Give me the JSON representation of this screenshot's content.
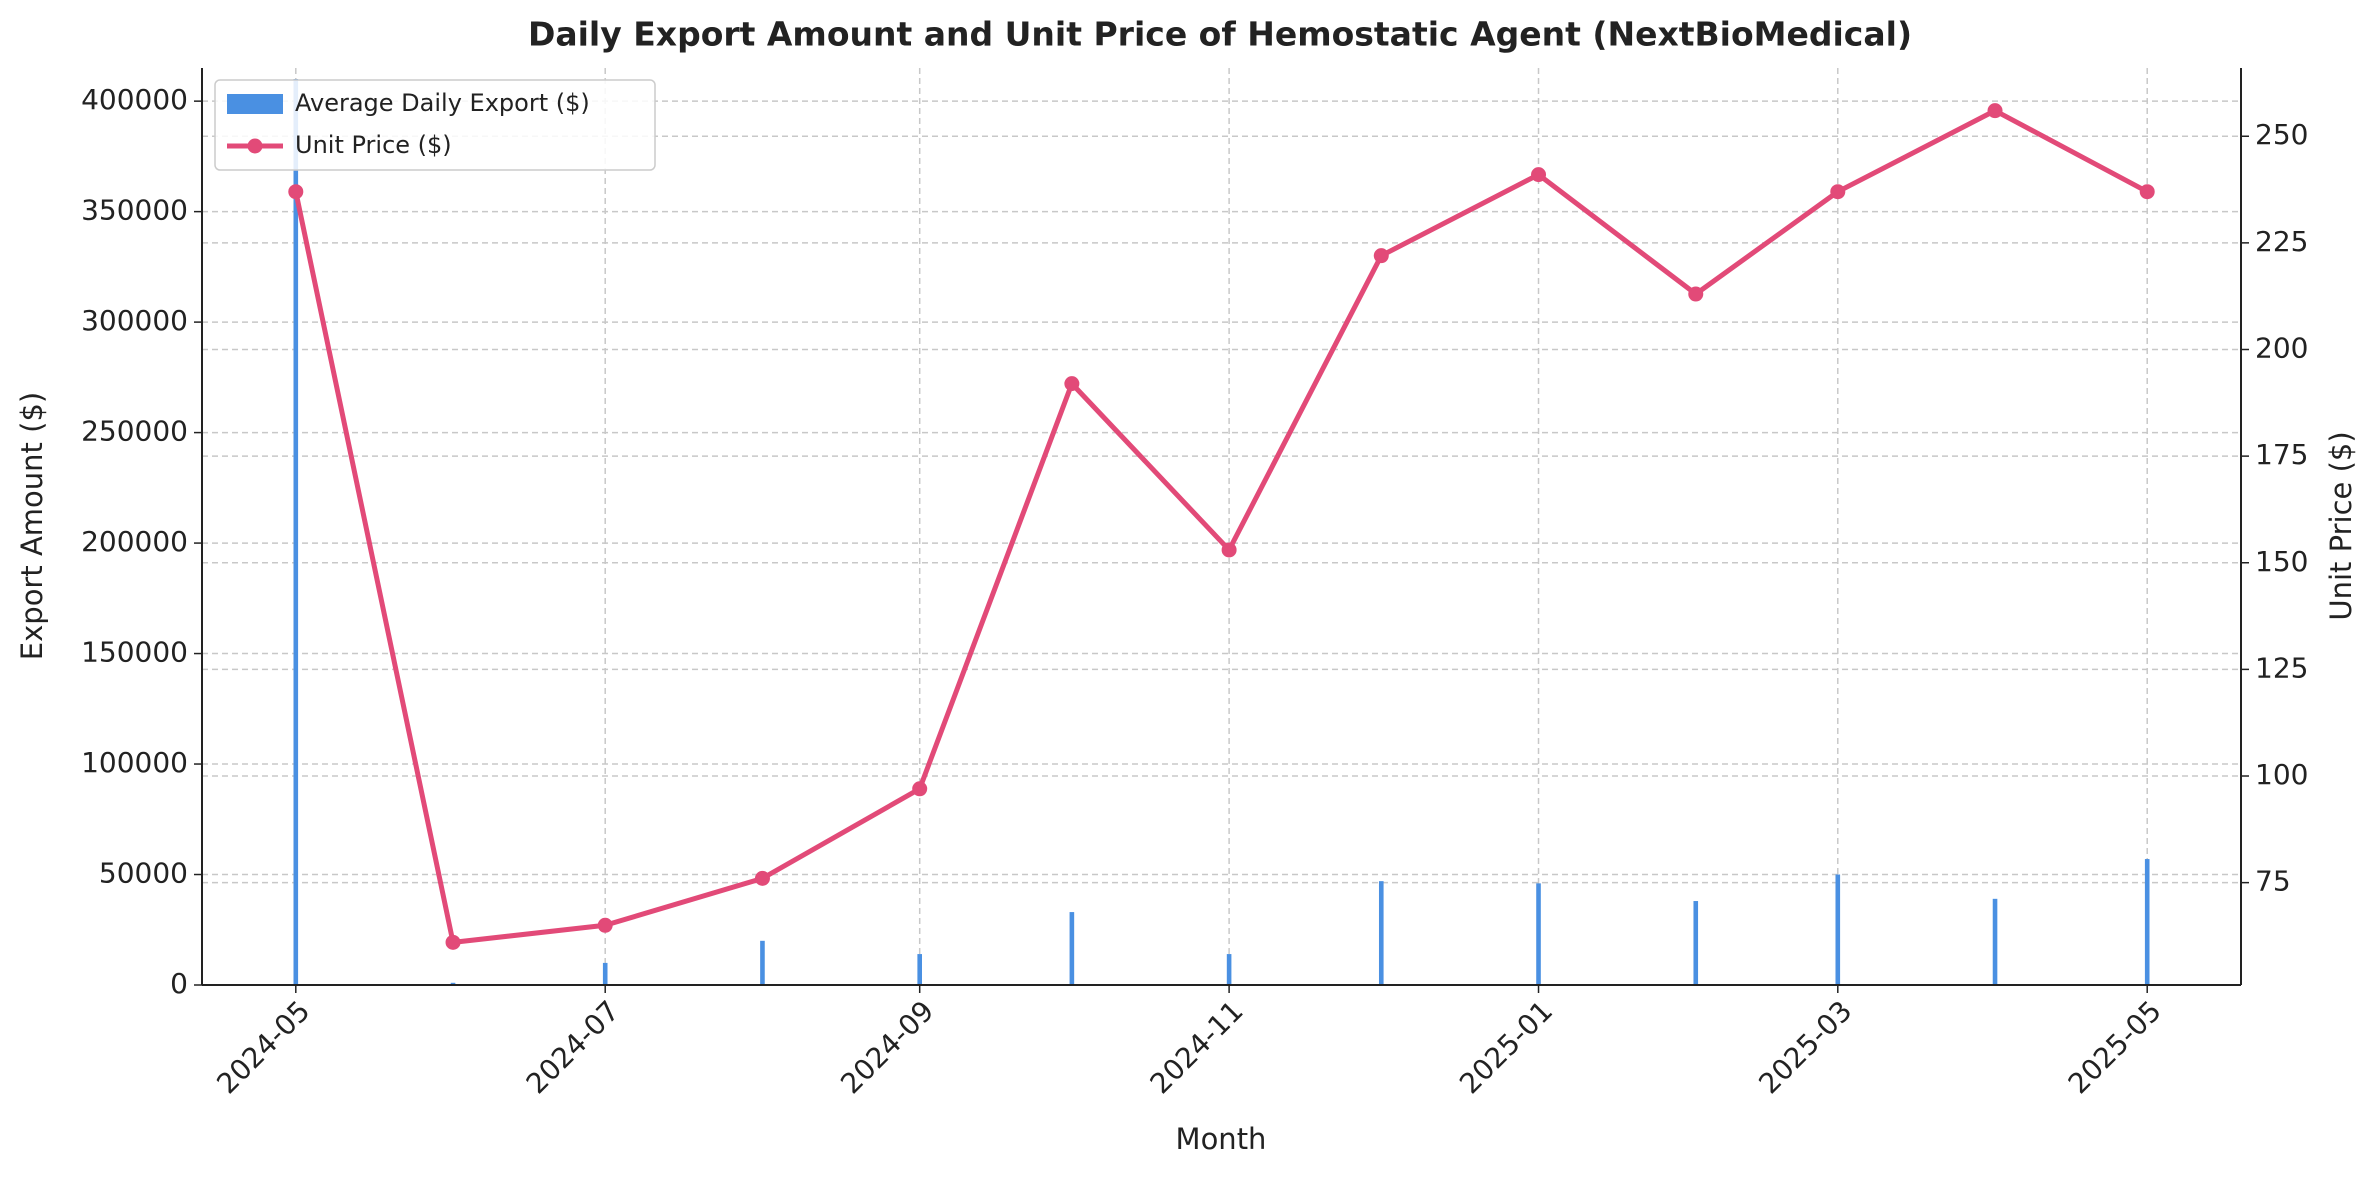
{
  "chart_data": {
    "type": "combo",
    "title": "Daily Export Amount and Unit Price of Hemostatic Agent (NextBioMedical)",
    "x_label": "Month",
    "y_label": "Export Amount ($)",
    "y2_label": "Unit Price ($)",
    "x": [
      "2024-05",
      "2024-06",
      "2024-07",
      "2024-08",
      "2024-09",
      "2024-10",
      "2024-11",
      "2024-12",
      "2025-01",
      "2025-02",
      "2025-03",
      "2025-04",
      "2025-05"
    ],
    "xticks": [
      "2024-05",
      "2024-07",
      "2024-09",
      "2024-11",
      "2025-01",
      "2025-03",
      "2025-05"
    ],
    "series": [
      {
        "name": "Average Daily Export ($)",
        "type": "bar",
        "color": "#4a90e2",
        "values": [
          410000,
          1000,
          10000,
          20000,
          14000,
          33000,
          14000,
          47000,
          46000,
          38000,
          50000,
          39000,
          57000
        ]
      },
      {
        "name": "Unit Price ($)",
        "type": "line",
        "axis": "y2",
        "color": "#e24a78",
        "values": [
          237,
          61,
          65,
          76,
          97,
          192,
          153,
          222,
          241,
          213,
          237,
          256,
          237
        ]
      }
    ],
    "ylim": [
      0,
      415000
    ],
    "yticks": [
      0,
      50000,
      100000,
      150000,
      200000,
      250000,
      300000,
      350000,
      400000
    ],
    "y2lim": [
      51,
      266
    ],
    "y2ticks": [
      75,
      100,
      125,
      150,
      175,
      200,
      225,
      250
    ],
    "grid": true,
    "legend": "upper left"
  }
}
